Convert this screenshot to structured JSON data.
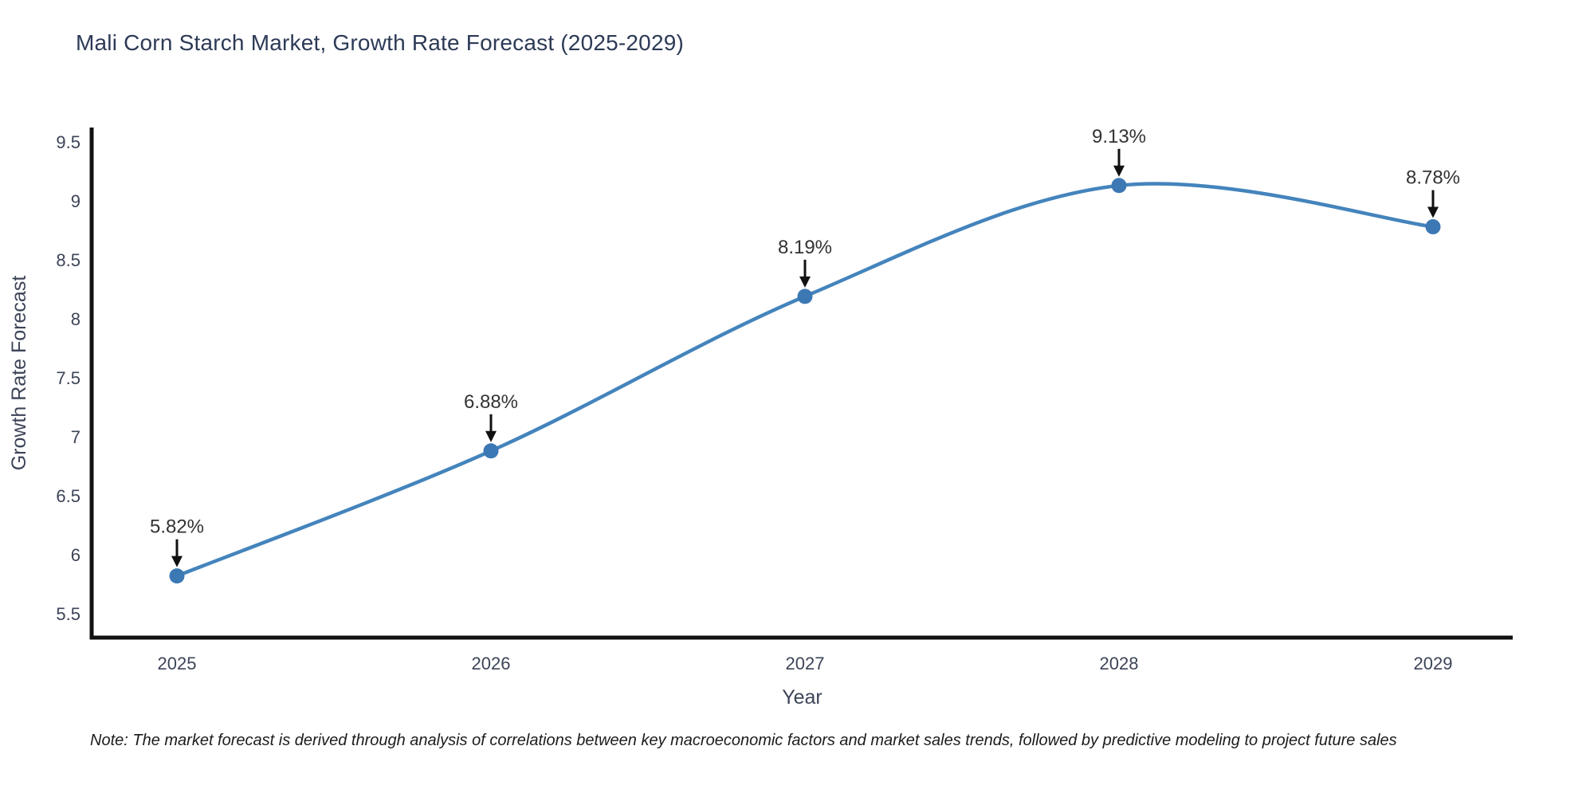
{
  "title": "Mali Corn Starch Market, Growth Rate Forecast (2025-2029)",
  "footnote": "Note: The market forecast is derived through analysis of correlations between key macroeconomic factors and market sales trends, followed by predictive modeling to project future sales",
  "chart_data": {
    "type": "line",
    "title": "Mali Corn Starch Market, Growth Rate Forecast (2025-2029)",
    "xlabel": "Year",
    "ylabel": "Growth Rate Forecast",
    "categories": [
      "2025",
      "2026",
      "2027",
      "2028",
      "2029"
    ],
    "x": [
      2025,
      2026,
      2027,
      2028,
      2029
    ],
    "values": [
      5.82,
      6.88,
      8.19,
      9.13,
      8.78
    ],
    "point_labels": [
      "5.82%",
      "6.88%",
      "8.19%",
      "9.13%",
      "8.78%"
    ],
    "yticks": [
      5.5,
      6,
      6.5,
      7,
      7.5,
      8,
      8.5,
      9,
      9.5
    ],
    "ylim": [
      5.3,
      9.65
    ],
    "grid": false,
    "legend_position": "none",
    "smooth_spline": true,
    "colors": {
      "line": "#4484bc",
      "marker": "#3c78b4",
      "axis": "#111111",
      "tick_label": "#3c4457",
      "axis_title": "#3c4457",
      "annotation_text": "#333333",
      "annotation_arrow": "#111111",
      "background": "#ffffff"
    }
  }
}
